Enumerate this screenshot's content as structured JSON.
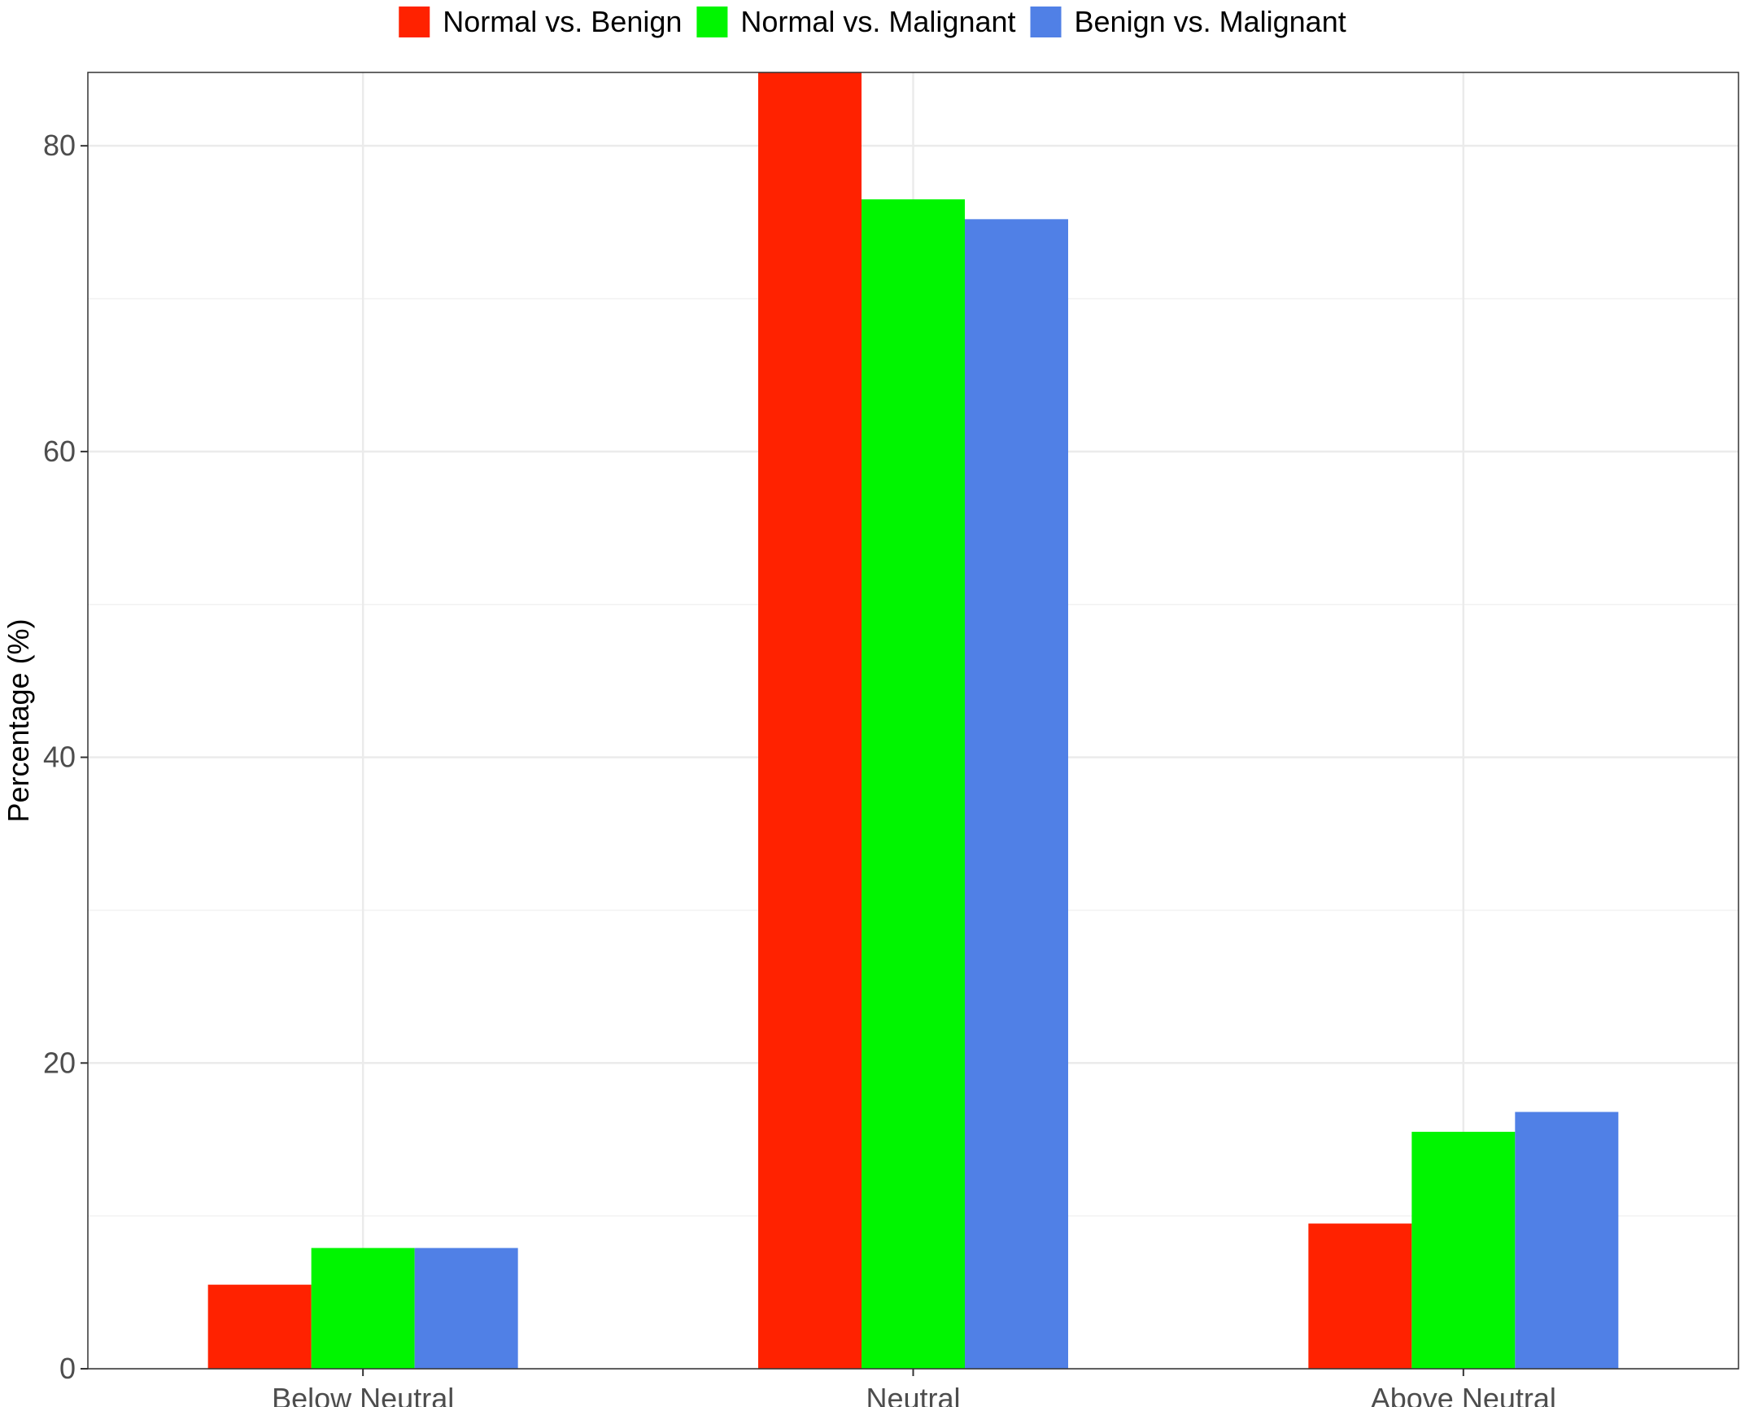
{
  "chart_data": {
    "type": "bar",
    "title": "",
    "xlabel": "",
    "ylabel": "Percentage (%)",
    "categories": [
      "Below Neutral",
      "Neutral",
      "Above Neutral"
    ],
    "series": [
      {
        "name": "Normal vs. Benign",
        "color": "#ff2200",
        "values": [
          5.5,
          84.8,
          9.5
        ]
      },
      {
        "name": "Normal vs. Malignant",
        "color": "#00f500",
        "values": [
          7.9,
          76.5,
          15.5
        ]
      },
      {
        "name": "Benign vs. Malignant",
        "color": "#5080e6",
        "values": [
          7.9,
          75.2,
          16.8
        ]
      }
    ],
    "ylim": [
      0,
      84.8
    ],
    "yticks": [
      0,
      20,
      40,
      60,
      80
    ],
    "yticks_labels": [
      "0",
      "20",
      "40",
      "60",
      "80"
    ],
    "grid": true,
    "legend_position": "top"
  }
}
